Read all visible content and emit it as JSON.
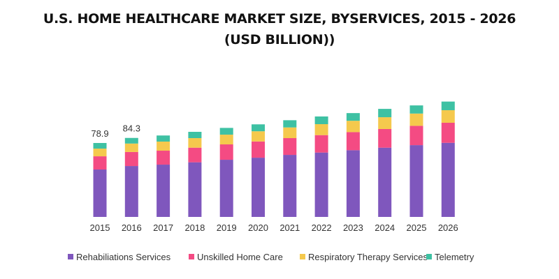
{
  "chart_data": {
    "type": "bar",
    "stacked": true,
    "title_line1": "U.S. HOME HEALTHCARE MARKET SIZE, BYSERVICES, 2015 - 2026",
    "title_line2": "(USD BILLION))",
    "xlabel": "",
    "ylabel": "",
    "ylim": [
      0,
      130
    ],
    "grid": false,
    "legend_position": "bottom",
    "categories": [
      "2015",
      "2016",
      "2017",
      "2018",
      "2019",
      "2020",
      "2021",
      "2022",
      "2023",
      "2024",
      "2025",
      "2026"
    ],
    "series": [
      {
        "name": "Rehabiliations Services",
        "color": "#7f57bd",
        "values": [
          50.6,
          54.3,
          55.8,
          58.3,
          61.0,
          63.2,
          66.2,
          68.7,
          71.2,
          73.9,
          76.6,
          79.1
        ]
      },
      {
        "name": "Unskilled Home Care",
        "color": "#f44b83",
        "values": [
          14.1,
          15.0,
          14.9,
          15.6,
          16.4,
          17.3,
          17.9,
          18.6,
          19.3,
          19.9,
          20.6,
          21.4
        ]
      },
      {
        "name": "Respiratory Therapy Services",
        "color": "#f5c94d",
        "values": [
          8.2,
          9.0,
          9.7,
          10.2,
          10.4,
          10.9,
          11.4,
          11.7,
          12.1,
          12.6,
          13.1,
          13.4
        ]
      },
      {
        "name": "Telemetry",
        "color": "#3ec1a3",
        "values": [
          6.0,
          6.0,
          6.5,
          6.7,
          7.2,
          7.4,
          7.7,
          8.2,
          8.2,
          8.9,
          8.7,
          9.2
        ]
      }
    ],
    "data_labels": [
      {
        "category": "2015",
        "text": "78.9"
      },
      {
        "category": "2016",
        "text": "84.3"
      }
    ]
  }
}
